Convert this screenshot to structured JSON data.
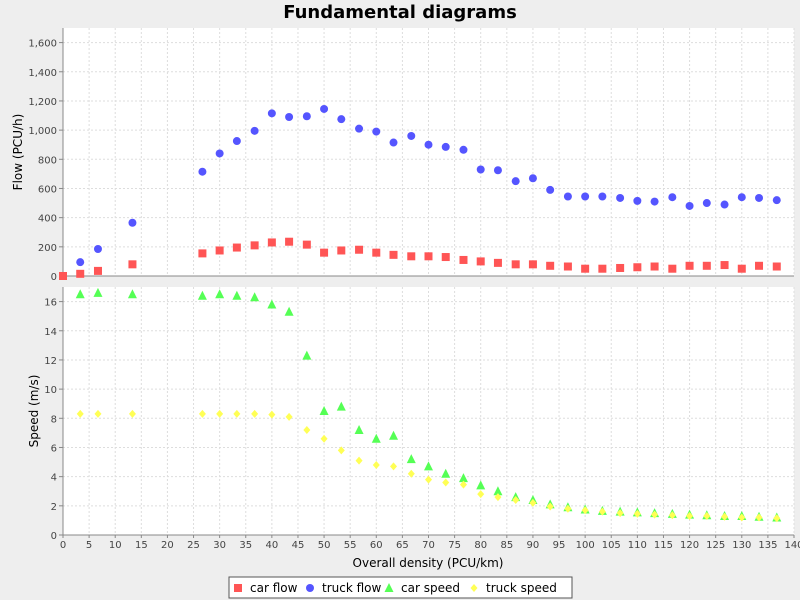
{
  "chart_data": {
    "title": "Fundamental diagrams",
    "xlabel": "Overall density (PCU/km)",
    "xlim": [
      0,
      140
    ],
    "xticks": [
      0,
      5,
      10,
      15,
      20,
      25,
      30,
      35,
      40,
      45,
      50,
      55,
      60,
      65,
      70,
      75,
      80,
      85,
      90,
      95,
      100,
      105,
      110,
      115,
      120,
      125,
      130,
      135,
      140
    ],
    "grid": true,
    "legend_position": "bottom",
    "subplots": [
      {
        "type": "scatter",
        "ylabel": "Flow (PCU/h)",
        "ylim": [
          0,
          1700
        ],
        "yticks": [
          0,
          200,
          400,
          600,
          800,
          1000,
          1200,
          1400,
          1600
        ],
        "ytick_labels": [
          "0",
          "200",
          "400",
          "600",
          "800",
          "1,000",
          "1,200",
          "1,400",
          "1,600"
        ],
        "series": [
          {
            "name": "car flow",
            "marker": "square",
            "color": "#ff5555",
            "x": [
              0,
              3.3,
              6.7,
              13.3,
              26.7,
              30,
              33.3,
              36.7,
              40,
              43.3,
              46.7,
              50,
              53.3,
              56.7,
              60,
              63.3,
              66.7,
              70,
              73.3,
              76.7,
              80,
              83.3,
              86.7,
              90,
              93.3,
              96.7,
              100,
              103.3,
              106.7,
              110,
              113.3,
              116.7,
              120,
              123.3,
              126.7,
              130,
              133.3,
              136.7
            ],
            "y": [
              0,
              15,
              35,
              80,
              155,
              175,
              195,
              210,
              230,
              235,
              215,
              160,
              175,
              180,
              160,
              145,
              135,
              135,
              130,
              110,
              100,
              90,
              80,
              80,
              70,
              65,
              50,
              50,
              55,
              60,
              65,
              50,
              70,
              70,
              75,
              50,
              70,
              65
            ]
          },
          {
            "name": "truck flow",
            "marker": "circle",
            "color": "#5555ff",
            "x": [
              3.3,
              6.7,
              13.3,
              26.7,
              30,
              33.3,
              36.7,
              40,
              43.3,
              46.7,
              50,
              53.3,
              56.7,
              60,
              63.3,
              66.7,
              70,
              73.3,
              76.7,
              80,
              83.3,
              86.7,
              90,
              93.3,
              96.7,
              100,
              103.3,
              106.7,
              110,
              113.3,
              116.7,
              120,
              123.3,
              126.7,
              130,
              133.3,
              136.7
            ],
            "y": [
              95,
              185,
              365,
              715,
              840,
              925,
              995,
              1115,
              1090,
              1095,
              1145,
              1075,
              1010,
              990,
              915,
              960,
              900,
              885,
              865,
              730,
              725,
              650,
              670,
              590,
              545,
              545,
              545,
              535,
              515,
              510,
              540,
              480,
              500,
              490,
              540,
              535,
              520
            ]
          }
        ]
      },
      {
        "type": "scatter",
        "ylabel": "Speed (m/s)",
        "ylim": [
          0,
          17
        ],
        "yticks": [
          0,
          2,
          4,
          6,
          8,
          10,
          12,
          14,
          16
        ],
        "ytick_labels": [
          "0",
          "2",
          "4",
          "6",
          "8",
          "10",
          "12",
          "14",
          "16"
        ],
        "series": [
          {
            "name": "car speed",
            "marker": "triangle",
            "color": "#55ff55",
            "x": [
              3.3,
              6.7,
              13.3,
              26.7,
              30,
              33.3,
              36.7,
              40,
              43.3,
              46.7,
              50,
              53.3,
              56.7,
              60,
              63.3,
              66.7,
              70,
              73.3,
              76.7,
              80,
              83.3,
              86.7,
              90,
              93.3,
              96.7,
              100,
              103.3,
              106.7,
              110,
              113.3,
              116.7,
              120,
              123.3,
              126.7,
              130,
              133.3,
              136.7
            ],
            "y": [
              16.5,
              16.6,
              16.5,
              16.4,
              16.5,
              16.4,
              16.3,
              15.8,
              15.3,
              12.3,
              8.5,
              8.8,
              7.2,
              6.6,
              6.8,
              5.2,
              4.7,
              4.2,
              3.9,
              3.4,
              3.0,
              2.6,
              2.4,
              2.1,
              1.9,
              1.75,
              1.65,
              1.6,
              1.55,
              1.5,
              1.45,
              1.4,
              1.35,
              1.3,
              1.3,
              1.25,
              1.2
            ]
          },
          {
            "name": "truck speed",
            "marker": "diamond",
            "color": "#ffff55",
            "x": [
              3.3,
              6.7,
              13.3,
              26.7,
              30,
              33.3,
              36.7,
              40,
              43.3,
              46.7,
              50,
              53.3,
              56.7,
              60,
              63.3,
              66.7,
              70,
              73.3,
              76.7,
              80,
              83.3,
              86.7,
              90,
              93.3,
              96.7,
              100,
              103.3,
              106.7,
              110,
              113.3,
              116.7,
              120,
              123.3,
              126.7,
              130,
              133.3,
              136.7
            ],
            "y": [
              8.3,
              8.3,
              8.3,
              8.3,
              8.3,
              8.3,
              8.3,
              8.25,
              8.1,
              7.2,
              6.6,
              5.8,
              5.1,
              4.8,
              4.7,
              4.2,
              3.8,
              3.6,
              3.45,
              2.8,
              2.6,
              2.4,
              2.2,
              1.95,
              1.8,
              1.7,
              1.6,
              1.5,
              1.45,
              1.4,
              1.35,
              1.3,
              1.3,
              1.25,
              1.2,
              1.2,
              1.15
            ]
          }
        ]
      }
    ]
  }
}
